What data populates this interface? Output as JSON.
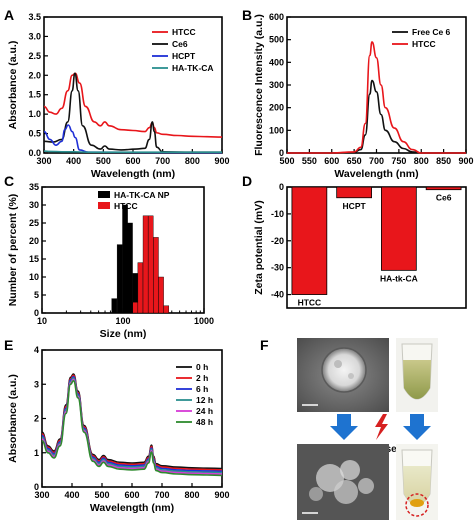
{
  "chart_data": [
    {
      "panel": "A",
      "type": "line",
      "xlabel": "Wavelength (nm)",
      "ylabel": "Absorbance (a.u.)",
      "xlim": [
        300,
        900
      ],
      "ylim": [
        0,
        3.5
      ],
      "xticks": [
        300,
        400,
        500,
        600,
        700,
        800,
        900
      ],
      "yticks": [
        0.0,
        0.5,
        1.0,
        1.5,
        2.0,
        2.5,
        3.0,
        3.5
      ],
      "legend": "top-right",
      "series": [
        {
          "name": "HTCC",
          "color": "#e8161b",
          "x": [
            300,
            320,
            340,
            360,
            380,
            395,
            405,
            420,
            440,
            470,
            490,
            505,
            520,
            560,
            600,
            640,
            655,
            665,
            672,
            680,
            700,
            750,
            800,
            850,
            900
          ],
          "y": [
            1.2,
            1.05,
            1.0,
            1.15,
            1.6,
            2.0,
            2.05,
            1.8,
            1.2,
            0.8,
            0.7,
            0.8,
            0.7,
            0.6,
            0.58,
            0.55,
            0.65,
            0.78,
            0.65,
            0.52,
            0.48,
            0.45,
            0.43,
            0.42,
            0.41
          ]
        },
        {
          "name": "Ce6",
          "color": "#111111",
          "x": [
            300,
            330,
            360,
            380,
            395,
            404,
            415,
            430,
            460,
            490,
            505,
            520,
            560,
            610,
            640,
            655,
            665,
            672,
            680,
            700,
            800,
            900
          ],
          "y": [
            0.3,
            0.28,
            0.35,
            0.8,
            1.6,
            2.05,
            1.6,
            0.7,
            0.2,
            0.1,
            0.18,
            0.1,
            0.08,
            0.1,
            0.12,
            0.35,
            0.8,
            0.55,
            0.15,
            0.03,
            0.02,
            0.02
          ]
        },
        {
          "name": "HCPT",
          "color": "#1f2fd6",
          "x": [
            300,
            320,
            340,
            360,
            370,
            382,
            395,
            405,
            420,
            450,
            900
          ],
          "y": [
            0.55,
            0.35,
            0.2,
            0.3,
            0.6,
            0.72,
            0.55,
            0.4,
            0.08,
            0.02,
            0.01
          ]
        },
        {
          "name": "HA-TK-CA",
          "color": "#2a8f8f",
          "x": [
            300,
            320,
            360,
            400,
            450,
            500,
            600,
            700,
            800,
            900
          ],
          "y": [
            0.05,
            0.04,
            0.03,
            0.03,
            0.02,
            0.02,
            0.02,
            0.02,
            0.02,
            0.02
          ]
        }
      ]
    },
    {
      "panel": "B",
      "type": "line",
      "xlabel": "Wavelength (nm)",
      "ylabel": "Fluorescence Intensity (a.u.)",
      "xlim": [
        500,
        900
      ],
      "ylim": [
        0,
        600
      ],
      "xticks": [
        500,
        550,
        600,
        650,
        700,
        750,
        800,
        850,
        900
      ],
      "yticks": [
        0,
        100,
        200,
        300,
        400,
        500,
        600
      ],
      "legend": "top-right",
      "series": [
        {
          "name": "Free Ce 6",
          "color": "#111111",
          "x": [
            500,
            600,
            650,
            665,
            675,
            685,
            690,
            700,
            710,
            720,
            740,
            760,
            780,
            800,
            900
          ],
          "y": [
            0,
            0,
            3,
            15,
            80,
            260,
            320,
            270,
            170,
            100,
            50,
            20,
            5,
            0,
            0
          ]
        },
        {
          "name": "HTCC",
          "color": "#e8161b",
          "x": [
            500,
            600,
            650,
            665,
            675,
            685,
            690,
            700,
            710,
            720,
            740,
            760,
            780,
            800,
            900
          ],
          "y": [
            0,
            0,
            5,
            25,
            130,
            430,
            490,
            420,
            300,
            200,
            110,
            50,
            15,
            0,
            0
          ]
        }
      ]
    },
    {
      "panel": "C",
      "type": "bar",
      "xlabel": "Size (nm)",
      "ylabel": "Number of percent (%)",
      "xscale": "log",
      "xlim": [
        10,
        1000
      ],
      "ylim": [
        0,
        35
      ],
      "xticks": [
        10,
        100,
        1000
      ],
      "yticks": [
        0,
        5,
        10,
        15,
        20,
        25,
        30,
        35
      ],
      "legend": "top-right",
      "series": [
        {
          "name": "HA-TK-CA NP",
          "color": "#000000",
          "x": [
            78,
            91,
            106,
            122,
            142
          ],
          "y": [
            4,
            19,
            30,
            25,
            11
          ]
        },
        {
          "name": "HTCC",
          "color": "#e8161b",
          "x": [
            142,
            164,
            190,
            220,
            255,
            295,
            342
          ],
          "y": [
            3,
            14,
            27,
            27,
            21,
            10,
            2
          ]
        }
      ]
    },
    {
      "panel": "D",
      "type": "bar",
      "ylabel": "Zeta potential (mV)",
      "ylim": [
        -45,
        0
      ],
      "yticks": [
        0,
        -10,
        -20,
        -30,
        -40
      ],
      "categories": [
        "HTCC",
        "HCPT",
        "HA-tk-CA",
        "Ce6"
      ],
      "values": [
        -40,
        -4,
        -31,
        -1
      ],
      "color": "#e8161b"
    },
    {
      "panel": "E",
      "type": "line",
      "xlabel": "Wavelength (nm)",
      "ylabel": "Absorbance (a.u.)",
      "xlim": [
        300,
        900
      ],
      "ylim": [
        0,
        4
      ],
      "xticks": [
        300,
        400,
        500,
        600,
        700,
        800,
        900
      ],
      "yticks": [
        0,
        1,
        2,
        3,
        4
      ],
      "legend": "top-right",
      "series": [
        {
          "name": "0 h",
          "color": "#111111",
          "x": [
            300,
            320,
            340,
            360,
            380,
            395,
            405,
            420,
            440,
            470,
            490,
            505,
            520,
            560,
            600,
            640,
            655,
            665,
            672,
            680,
            700,
            750,
            800,
            850,
            900
          ],
          "y": [
            1.6,
            1.2,
            1.05,
            1.4,
            2.4,
            3.2,
            3.3,
            2.8,
            1.8,
            0.95,
            0.8,
            0.92,
            0.8,
            0.72,
            0.7,
            0.72,
            0.9,
            1.22,
            0.9,
            0.68,
            0.62,
            0.58,
            0.56,
            0.55,
            0.54
          ]
        },
        {
          "name": "2 h",
          "color": "#e8161b",
          "x": [
            300,
            320,
            340,
            360,
            380,
            395,
            405,
            420,
            440,
            470,
            490,
            505,
            520,
            560,
            600,
            640,
            655,
            665,
            672,
            680,
            700,
            750,
            800,
            850,
            900
          ],
          "y": [
            1.55,
            1.16,
            1.01,
            1.36,
            2.35,
            3.16,
            3.26,
            2.76,
            1.76,
            0.91,
            0.76,
            0.88,
            0.76,
            0.68,
            0.66,
            0.68,
            0.86,
            1.18,
            0.86,
            0.64,
            0.58,
            0.54,
            0.52,
            0.51,
            0.5
          ]
        },
        {
          "name": "6 h",
          "color": "#1f2fd6",
          "x": [
            300,
            320,
            340,
            360,
            380,
            395,
            405,
            420,
            440,
            470,
            490,
            505,
            520,
            560,
            600,
            640,
            655,
            665,
            672,
            680,
            700,
            750,
            800,
            850,
            900
          ],
          "y": [
            1.5,
            1.12,
            0.97,
            1.32,
            2.3,
            3.12,
            3.22,
            2.72,
            1.72,
            0.87,
            0.72,
            0.84,
            0.72,
            0.64,
            0.62,
            0.64,
            0.82,
            1.14,
            0.82,
            0.6,
            0.54,
            0.5,
            0.48,
            0.47,
            0.46
          ]
        },
        {
          "name": "12 h",
          "color": "#2a8f8f",
          "x": [
            300,
            320,
            340,
            360,
            380,
            395,
            405,
            420,
            440,
            470,
            490,
            505,
            520,
            560,
            600,
            640,
            655,
            665,
            672,
            680,
            700,
            750,
            800,
            850,
            900
          ],
          "y": [
            1.45,
            1.08,
            0.93,
            1.28,
            2.25,
            3.08,
            3.18,
            2.68,
            1.68,
            0.83,
            0.68,
            0.8,
            0.68,
            0.6,
            0.58,
            0.6,
            0.78,
            1.1,
            0.78,
            0.56,
            0.5,
            0.46,
            0.44,
            0.43,
            0.42
          ]
        },
        {
          "name": "24 h",
          "color": "#d63ad6",
          "x": [
            300,
            320,
            340,
            360,
            380,
            395,
            405,
            420,
            440,
            470,
            490,
            505,
            520,
            560,
            600,
            640,
            655,
            665,
            672,
            680,
            700,
            750,
            800,
            850,
            900
          ],
          "y": [
            1.4,
            1.04,
            0.89,
            1.24,
            2.2,
            3.04,
            3.14,
            2.64,
            1.64,
            0.79,
            0.64,
            0.76,
            0.64,
            0.56,
            0.54,
            0.56,
            0.74,
            1.06,
            0.74,
            0.52,
            0.46,
            0.42,
            0.4,
            0.39,
            0.38
          ]
        },
        {
          "name": "48 h",
          "color": "#2e8b2e",
          "x": [
            300,
            320,
            340,
            360,
            380,
            395,
            405,
            420,
            440,
            470,
            490,
            505,
            520,
            560,
            600,
            640,
            655,
            665,
            672,
            680,
            700,
            750,
            800,
            850,
            900
          ],
          "y": [
            1.35,
            1.0,
            0.85,
            1.2,
            2.15,
            3.0,
            3.1,
            2.6,
            1.6,
            0.75,
            0.6,
            0.72,
            0.6,
            0.52,
            0.5,
            0.52,
            0.7,
            1.02,
            0.7,
            0.48,
            0.42,
            0.38,
            0.36,
            0.35,
            0.34
          ]
        }
      ]
    }
  ],
  "panel_letters": [
    "A",
    "B",
    "C",
    "D",
    "E",
    "F"
  ],
  "panel_f": {
    "laser_label": "630 nm laser"
  },
  "colors": {
    "red": "#e8161b",
    "black": "#111111",
    "blue": "#1f2fd6",
    "arrow_blue": "#1e73d0",
    "bolt": "#d62020"
  }
}
